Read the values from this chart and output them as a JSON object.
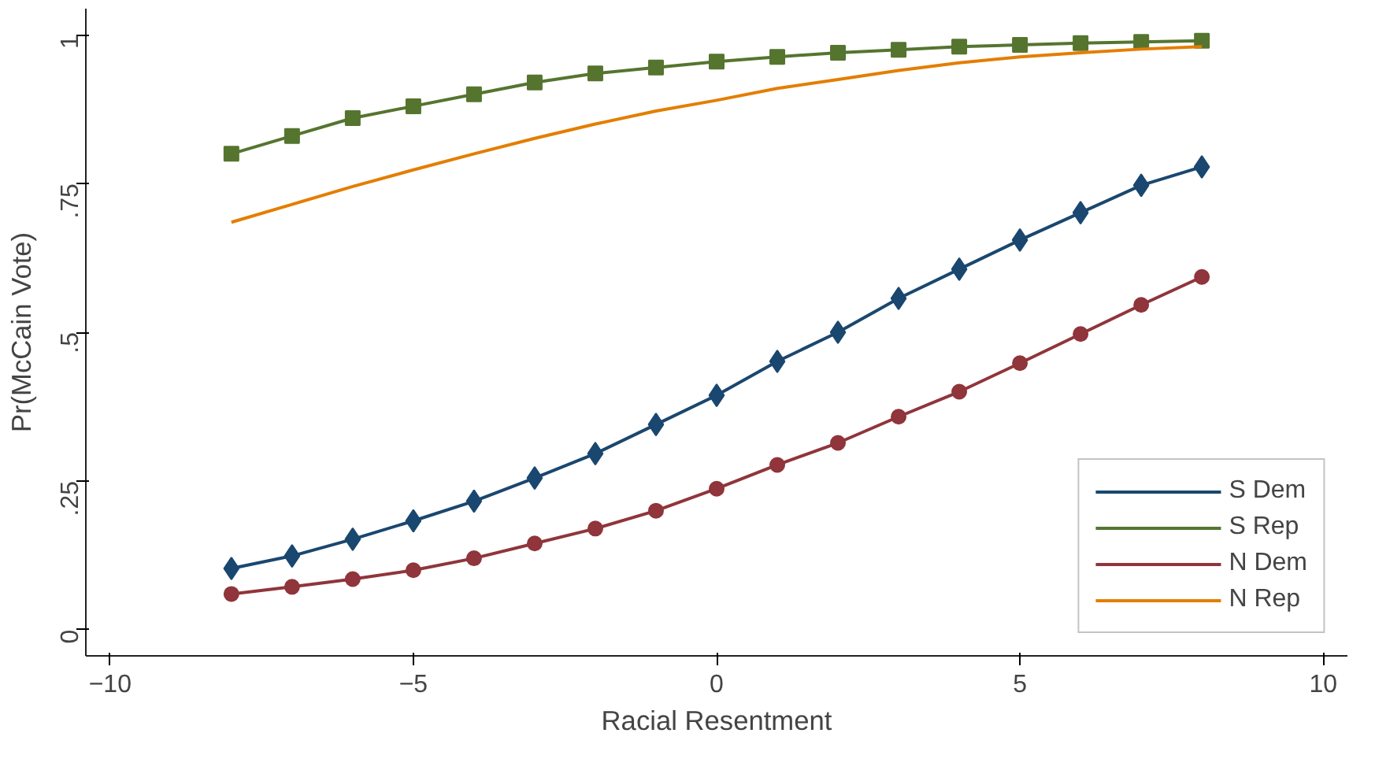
{
  "chart_data": {
    "type": "line",
    "xlabel": "Racial Resentment",
    "ylabel": "Pr(McCain Vote)",
    "x": [
      -8,
      -7,
      -6,
      -5,
      -4,
      -3,
      -2,
      -1,
      0,
      1,
      2,
      3,
      4,
      5,
      6,
      7,
      8
    ],
    "xlim": [
      -10.4,
      10.4
    ],
    "xticks": [
      {
        "value": -10,
        "label": "−10"
      },
      {
        "value": -5,
        "label": "−5"
      },
      0,
      5,
      10
    ],
    "ylim": [
      -0.044,
      1.044
    ],
    "yticks": [
      0,
      {
        "value": 0.25,
        "label": ".25"
      },
      {
        "value": 0.5,
        "label": ".5"
      },
      {
        "value": 0.75,
        "label": ".75"
      },
      1
    ],
    "grid": false,
    "legend": "bottom right",
    "series": [
      {
        "name": "S Dem",
        "color": "#1a476f",
        "marker": "diamond",
        "values": [
          0.103,
          0.124,
          0.152,
          0.183,
          0.216,
          0.255,
          0.296,
          0.345,
          0.394,
          0.451,
          0.5,
          0.557,
          0.606,
          0.655,
          0.701,
          0.747,
          0.778
        ]
      },
      {
        "name": "S Rep",
        "color": "#55752f",
        "marker": "square",
        "values": [
          0.8,
          0.83,
          0.86,
          0.88,
          0.9,
          0.92,
          0.935,
          0.945,
          0.955,
          0.963,
          0.97,
          0.975,
          0.98,
          0.983,
          0.986,
          0.988,
          0.99
        ]
      },
      {
        "name": "N Dem",
        "color": "#90353b",
        "marker": "circle",
        "values": [
          0.06,
          0.072,
          0.085,
          0.1,
          0.12,
          0.145,
          0.17,
          0.2,
          0.237,
          0.277,
          0.314,
          0.358,
          0.4,
          0.448,
          0.497,
          0.546,
          0.593
        ]
      },
      {
        "name": "N Rep",
        "color": "#e37e00",
        "marker": "none",
        "values": [
          0.685,
          0.715,
          0.745,
          0.773,
          0.8,
          0.826,
          0.85,
          0.872,
          0.89,
          0.91,
          0.925,
          0.94,
          0.953,
          0.963,
          0.97,
          0.976,
          0.98
        ]
      }
    ]
  }
}
